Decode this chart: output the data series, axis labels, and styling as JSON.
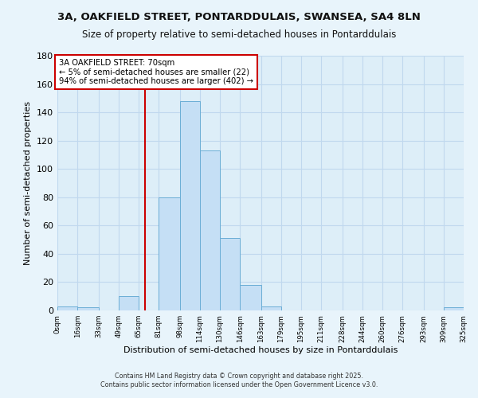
{
  "title1": "3A, OAKFIELD STREET, PONTARDDULAIS, SWANSEA, SA4 8LN",
  "title2": "Size of property relative to semi-detached houses in Pontarddulais",
  "xlabel": "Distribution of semi-detached houses by size in Pontarddulais",
  "ylabel": "Number of semi-detached properties",
  "bin_edges": [
    0,
    16,
    33,
    49,
    65,
    81,
    98,
    114,
    130,
    146,
    163,
    179,
    195,
    211,
    228,
    244,
    260,
    276,
    293,
    309,
    325
  ],
  "bin_labels": [
    "0sqm",
    "16sqm",
    "33sqm",
    "49sqm",
    "65sqm",
    "81sqm",
    "98sqm",
    "114sqm",
    "130sqm",
    "146sqm",
    "163sqm",
    "179sqm",
    "195sqm",
    "211sqm",
    "228sqm",
    "244sqm",
    "260sqm",
    "276sqm",
    "293sqm",
    "309sqm",
    "325sqm"
  ],
  "counts": [
    3,
    2,
    0,
    10,
    0,
    80,
    148,
    113,
    51,
    18,
    3,
    0,
    0,
    0,
    0,
    0,
    0,
    0,
    0,
    2
  ],
  "bar_color": "#c5dff5",
  "bar_edge_color": "#6baed6",
  "reference_line_x": 70,
  "reference_line_color": "#cc0000",
  "annotation_title": "3A OAKFIELD STREET: 70sqm",
  "annotation_line1": "← 5% of semi-detached houses are smaller (22)",
  "annotation_line2": "94% of semi-detached houses are larger (402) →",
  "annotation_box_color": "#ffffff",
  "annotation_box_edge_color": "#cc0000",
  "ylim": [
    0,
    180
  ],
  "yticks": [
    0,
    20,
    40,
    60,
    80,
    100,
    120,
    140,
    160,
    180
  ],
  "footer1": "Contains HM Land Registry data © Crown copyright and database right 2025.",
  "footer2": "Contains public sector information licensed under the Open Government Licence v3.0.",
  "bg_color": "#e8f4fb",
  "plot_bg_color": "#ddeef8",
  "grid_color": "#c0d8ee"
}
